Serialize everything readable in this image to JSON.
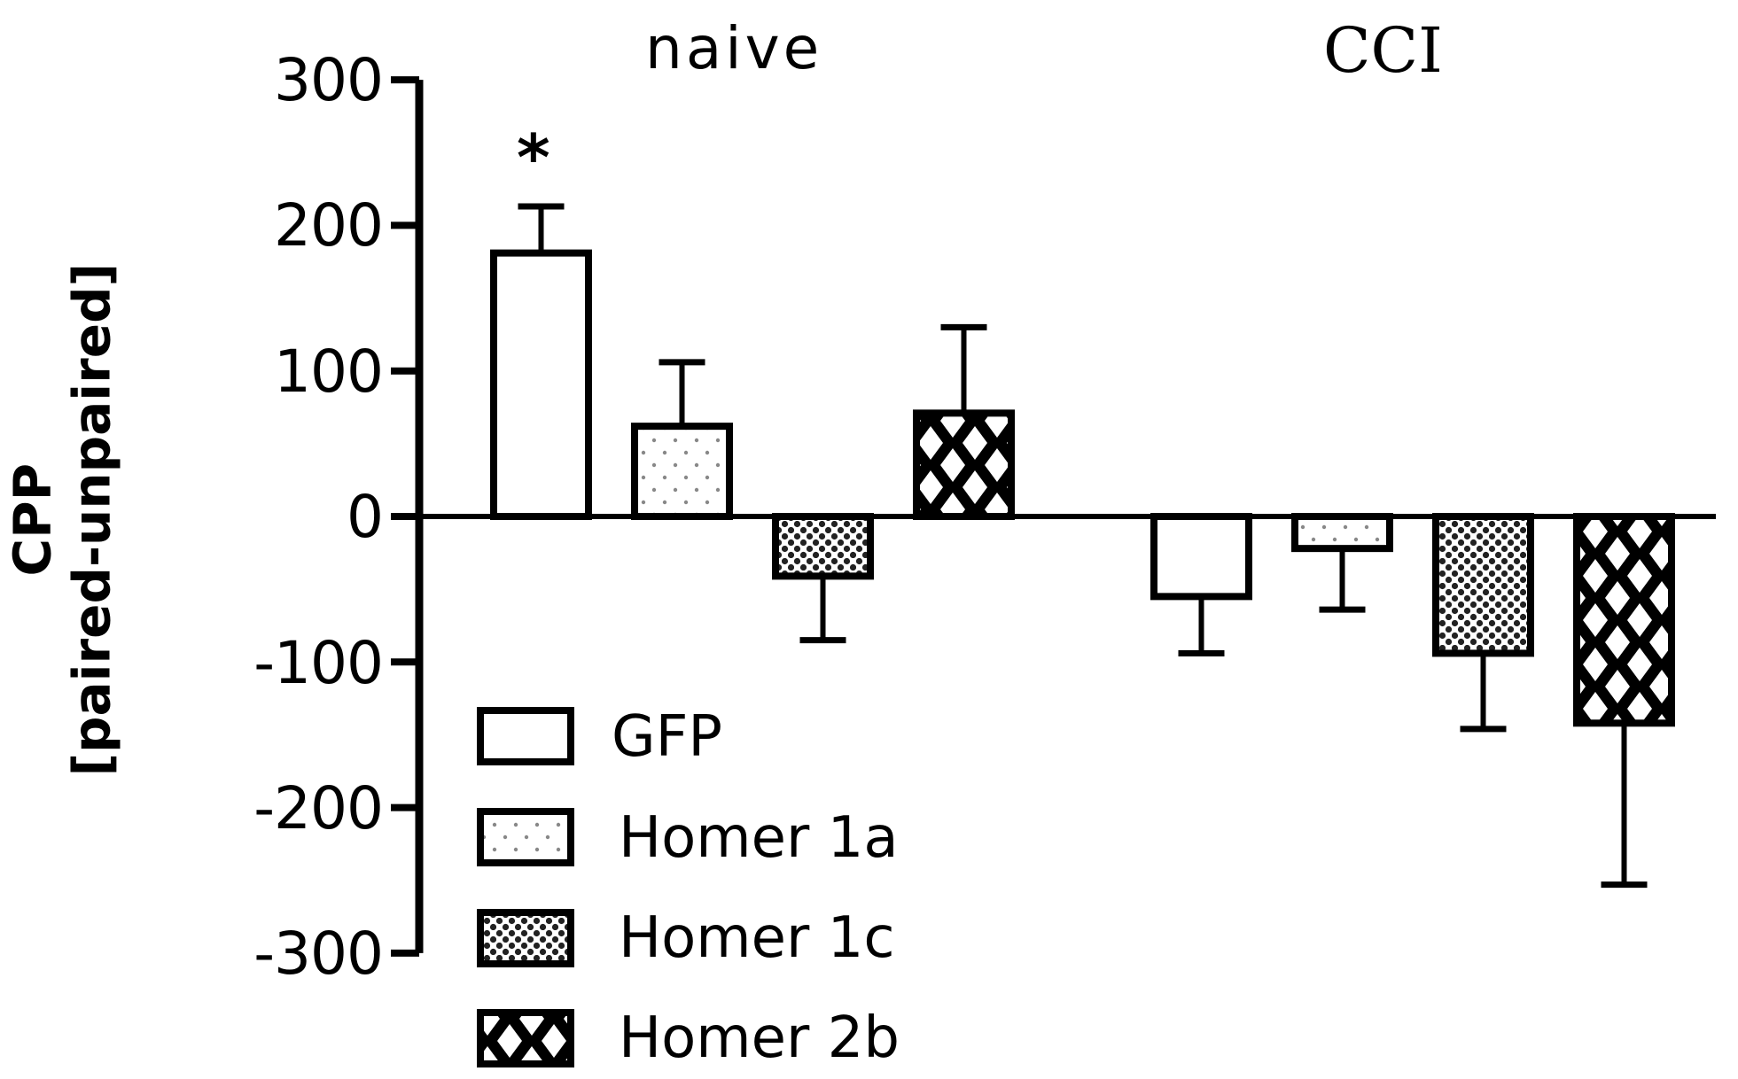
{
  "chart_data": {
    "type": "bar",
    "title": "",
    "xlabel": "",
    "ylabel": "CPP [paired-unpaired]",
    "ylabel_lines": [
      "CPP",
      "[paired-unpaired]"
    ],
    "ylim": [
      -300,
      300
    ],
    "yticks": [
      300,
      200,
      100,
      0,
      -100,
      -200,
      -300
    ],
    "ytick_labels": [
      "300",
      "200",
      "100",
      "0",
      "-100",
      "-200",
      "-300"
    ],
    "grid": false,
    "legend_position": "lower-left inside axes",
    "categories": [
      "naive",
      "CCI"
    ],
    "series": [
      {
        "name": "GFP",
        "pattern": "open",
        "values": [
          181,
          -55
        ],
        "error_bars": [
          32,
          39
        ]
      },
      {
        "name": "Homer 1a",
        "pattern": "sparse-dots",
        "values": [
          62,
          -22
        ],
        "error_bars": [
          44,
          42
        ]
      },
      {
        "name": "Homer 1c",
        "pattern": "dense-checker",
        "values": [
          -41,
          -94
        ],
        "error_bars": [
          44,
          52
        ]
      },
      {
        "name": "Homer 2b",
        "pattern": "crosshatch-diamond",
        "values": [
          71,
          -142
        ],
        "error_bars": [
          59,
          111
        ]
      }
    ],
    "annotations": [
      {
        "text": "*",
        "group": "naive",
        "series": "GFP",
        "meaning": "significant"
      }
    ]
  },
  "labels": {
    "group_naive": "naive",
    "group_cci": "CCI",
    "ylabel_line1": "CPP",
    "ylabel_line2": "[paired-unpaired]",
    "significance": "*",
    "ticks": [
      "300",
      "200",
      "100",
      "0",
      "-100",
      "-200",
      "-300"
    ],
    "legend": [
      "GFP",
      "Homer 1a",
      "Homer 1c",
      "Homer 2b"
    ]
  }
}
